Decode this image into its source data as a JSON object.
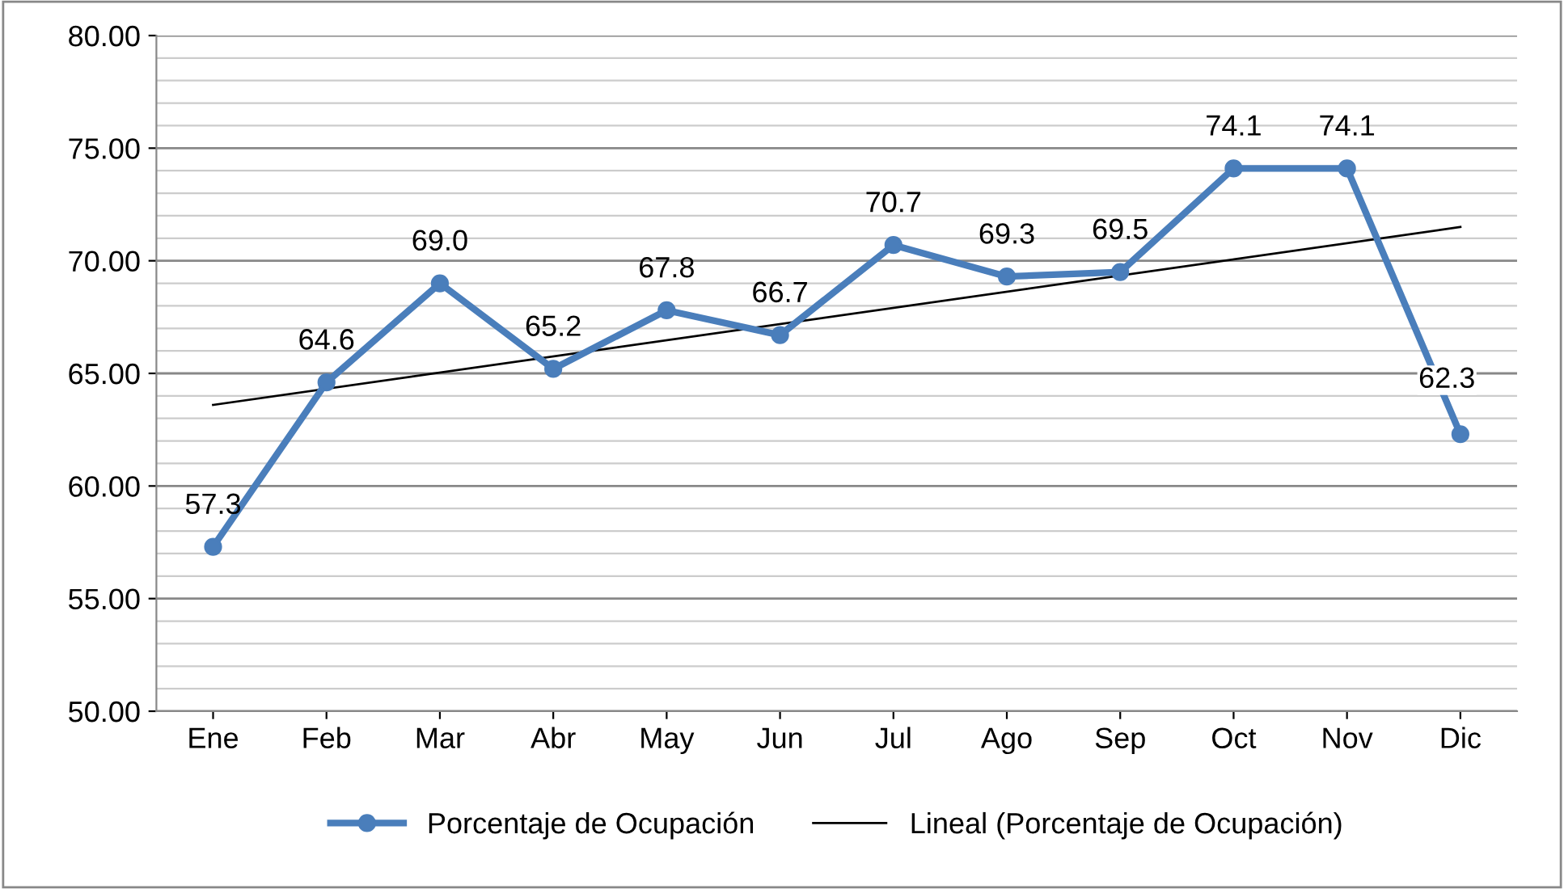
{
  "chart_data": {
    "type": "line",
    "categories": [
      "Ene",
      "Feb",
      "Mar",
      "Abr",
      "May",
      "Jun",
      "Jul",
      "Ago",
      "Sep",
      "Oct",
      "Nov",
      "Dic"
    ],
    "series": [
      {
        "name": "Porcentaje de Ocupación",
        "color": "#4a7ebb",
        "marker": "circle",
        "values": [
          57.3,
          64.6,
          69.0,
          65.2,
          67.8,
          66.7,
          70.7,
          69.3,
          69.5,
          74.1,
          74.1,
          62.3
        ],
        "value_labels": [
          "57.3",
          "64.6",
          "69.0",
          "65.2",
          "67.8",
          "66.7",
          "70.7",
          "69.3",
          "69.5",
          "74.1",
          "74.1",
          "62.3"
        ]
      },
      {
        "name": "Lineal (Porcentaje de Ocupación)",
        "color": "#000000",
        "marker": "none",
        "x": [
          "Ene",
          "Dic"
        ],
        "values": [
          63.6,
          71.5
        ]
      }
    ],
    "ylim": [
      50,
      80
    ],
    "yticks": [
      {
        "value": 50,
        "label": "50.00"
      },
      {
        "value": 55,
        "label": "55.00"
      },
      {
        "value": 60,
        "label": "60.00"
      },
      {
        "value": 65,
        "label": "65.00"
      },
      {
        "value": 70,
        "label": "70.00"
      },
      {
        "value": 75,
        "label": "75.00"
      },
      {
        "value": 80,
        "label": "80.00"
      }
    ],
    "grid": "y",
    "legend": "bottom"
  }
}
